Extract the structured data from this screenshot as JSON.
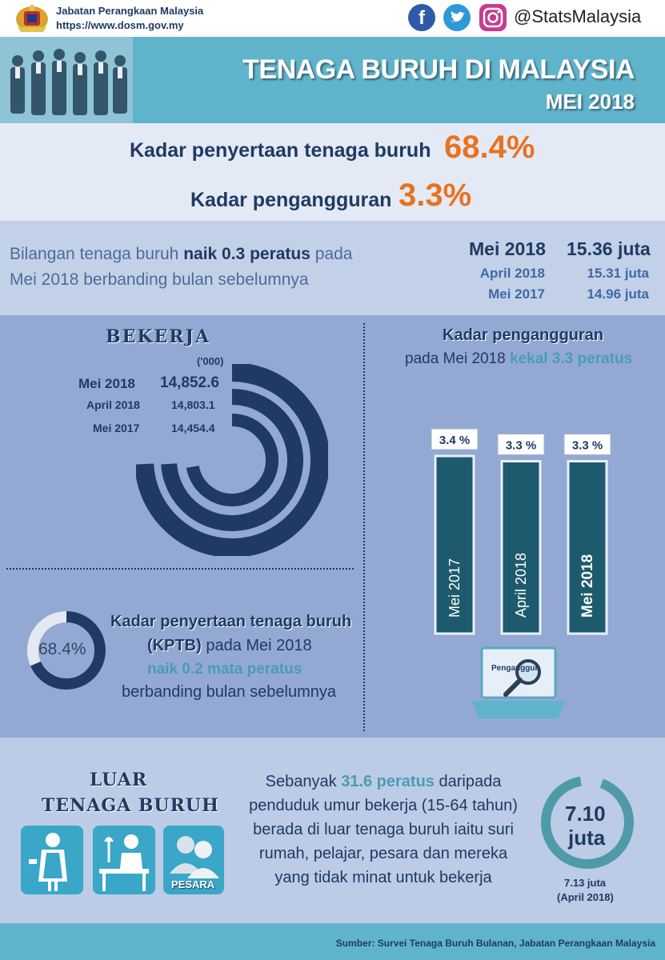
{
  "header": {
    "org_name": "Jabatan Perangkaan Malaysia",
    "org_url": "https://www.dosm.gov.my",
    "social_handle": "@StatsMalaysia",
    "title": "TENAGA BURUH DI MALAYSIA",
    "period": "MEI 2018"
  },
  "headline": {
    "lfpr_label": "Kadar penyertaan tenaga buruh",
    "lfpr_value": "68.4%",
    "unemp_label": "Kadar pengangguran",
    "unemp_value": "3.3%"
  },
  "labour_force": {
    "text_a": "Bilangan tenaga buruh ",
    "text_b": "naik 0.3 peratus",
    "text_c": " pada",
    "text_d": "Mei 2018 berbanding bulan sebelumnya",
    "rows": [
      {
        "period": "Mei 2018",
        "value": "15.36 juta"
      },
      {
        "period": "April 2018",
        "value": "15.31 juta"
      },
      {
        "period": "Mei 2017",
        "value": "14.96 juta"
      }
    ]
  },
  "employed": {
    "title": "BEKERJA",
    "unit": "('000)",
    "rows": [
      {
        "period": "Mei 2018",
        "value": "14,852.6",
        "amount": 14852.6
      },
      {
        "period": "April 2018",
        "value": "14,803.1",
        "amount": 14803.1
      },
      {
        "period": "Mei 2017",
        "value": "14,454.4",
        "amount": 14454.4
      }
    ]
  },
  "unemployment": {
    "title": "Kadar pengangguran",
    "subtitle_a": "pada Mei 2018 ",
    "subtitle_b": "kekal 3.3 peratus",
    "sign_text": "Penganggur"
  },
  "kptb": {
    "donut_label": "68.4%",
    "donut_fraction": 0.684,
    "line1": "Kadar penyertaan tenaga buruh",
    "line2a": "(KPTB)",
    "line2b": " pada Mei 2018",
    "line3": "naik 0.2 mata peratus",
    "line4": "berbanding bulan sebelumnya"
  },
  "outside": {
    "title_line1": "LUAR",
    "title_line2": "TENAGA  BURUH",
    "icon_label": "PESARA",
    "text_l1a": "Sebanyak ",
    "text_l1b": "31.6 peratus",
    "text_l1c": " daripada",
    "text_l2": "penduduk umur bekerja (15-64 tahun)",
    "text_l3": "berada di luar tenaga buruh iaitu suri",
    "text_l4": "rumah, pelajar, pesara dan mereka",
    "text_l5": "yang tidak minat untuk bekerja",
    "ring_value": "7.10",
    "ring_unit": "juta",
    "prev_value": "7.13 juta",
    "prev_period": "(April 2018)"
  },
  "footer": {
    "source": "Sumber: Survei Tenaga Buruh Bulanan, Jabatan Perangkaan Malaysia"
  },
  "chart_data": [
    {
      "type": "bar",
      "title": "Kadar pengangguran",
      "categories": [
        "Mei 2017",
        "April 2018",
        "Mei 2018"
      ],
      "values": [
        3.4,
        3.3,
        3.3
      ],
      "value_labels": [
        "3.4 %",
        "3.3 %",
        "3.3 %"
      ],
      "unit": "%"
    },
    {
      "type": "pie",
      "title": "BEKERJA",
      "categories": [
        "Mei 2018",
        "April 2018",
        "Mei 2017"
      ],
      "values": [
        14852.6,
        14803.1,
        14454.4
      ],
      "unit": "'000"
    }
  ],
  "colors": {
    "navy": "#1f3a63",
    "orange": "#e8731e",
    "teal": "#4a9db4",
    "bar": "#1e5a6e"
  }
}
